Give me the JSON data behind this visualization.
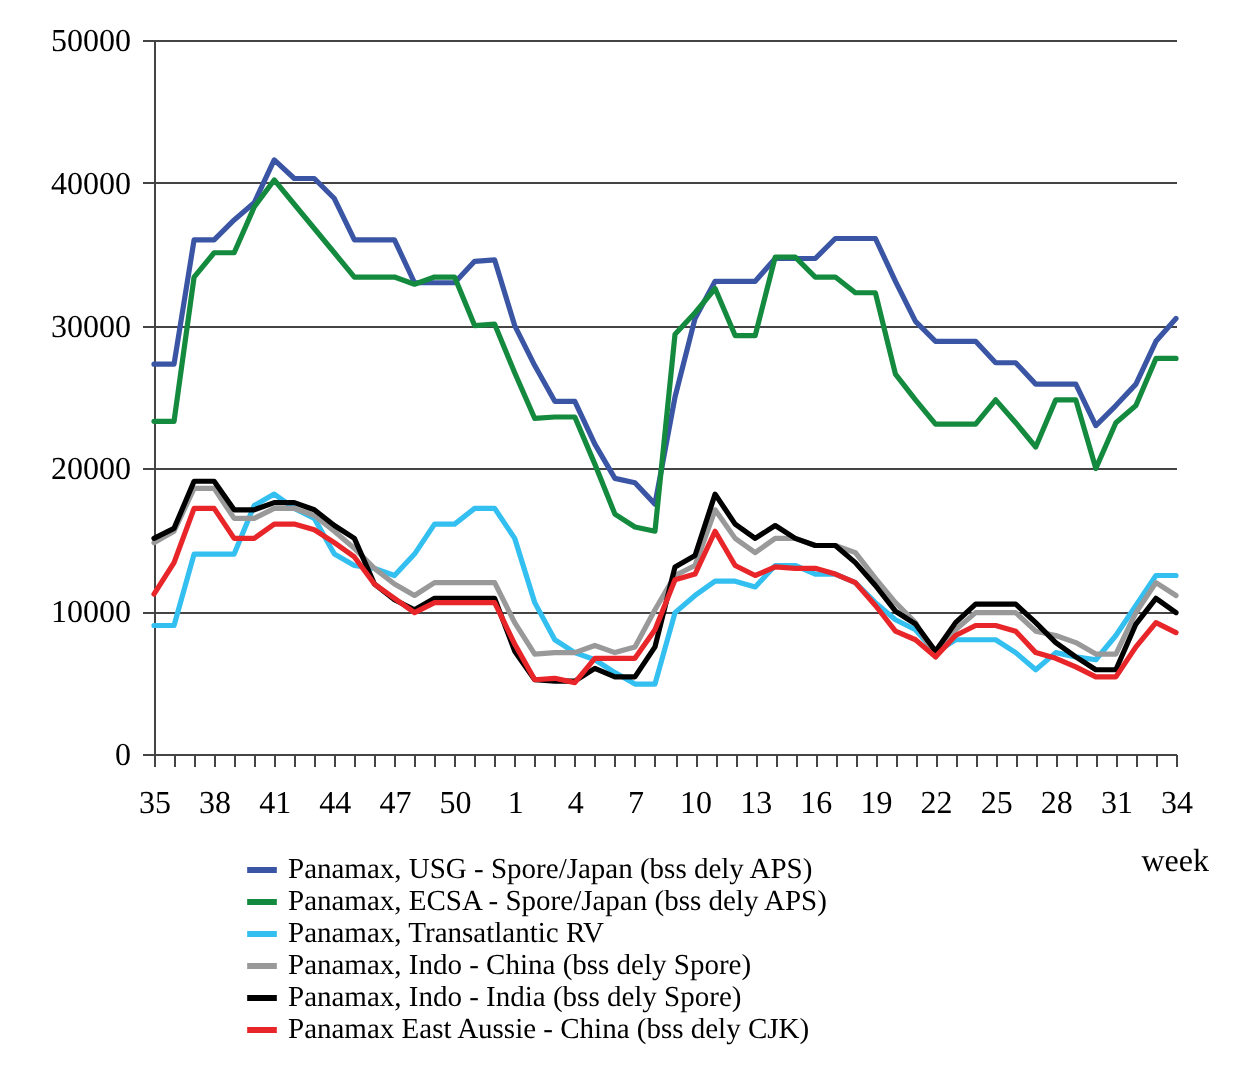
{
  "chart_data": {
    "type": "line",
    "xlabel": "week",
    "categories": [
      "35",
      null,
      null,
      "38",
      null,
      null,
      "41",
      null,
      null,
      "44",
      null,
      null,
      "47",
      null,
      null,
      "50",
      null,
      null,
      "1",
      null,
      null,
      "4",
      null,
      null,
      "7",
      null,
      null,
      "10",
      null,
      null,
      "13",
      null,
      null,
      "16",
      null,
      null,
      "19",
      null,
      null,
      "22",
      null,
      null,
      "25",
      null,
      null,
      "28",
      null,
      null,
      "31",
      null,
      null,
      "34"
    ],
    "series": [
      {
        "name": "Panamax, USG - Spore/Japan (bss dely APS)",
        "color": "#3b55a5",
        "values": [
          27300,
          27300,
          36000,
          36000,
          37400,
          38600,
          41600,
          40300,
          40300,
          38900,
          36000,
          36000,
          36000,
          33000,
          33000,
          33000,
          34500,
          34600,
          30000,
          27200,
          24700,
          24700,
          21700,
          19300,
          19000,
          17500,
          25000,
          30500,
          33100,
          33100,
          33100,
          34700,
          34700,
          34700,
          36100,
          36100,
          36100,
          33100,
          30300,
          28900,
          28900,
          28900,
          27400,
          27400,
          25900,
          25900,
          25900,
          23000,
          24400,
          25900,
          28900,
          30500
        ]
      },
      {
        "name": "Panamax, ECSA - Spore/Japan (bss dely APS)",
        "color": "#138a3e",
        "values": [
          23300,
          23300,
          33400,
          35100,
          35100,
          38300,
          40200,
          38500,
          36800,
          35100,
          33400,
          33400,
          33400,
          32900,
          33400,
          33400,
          30000,
          30100,
          26700,
          23500,
          23600,
          23600,
          20300,
          16800,
          15900,
          15600,
          29400,
          30900,
          32600,
          29300,
          29300,
          34800,
          34800,
          33400,
          33400,
          32300,
          32300,
          26600,
          24800,
          23100,
          23100,
          23100,
          24800,
          23200,
          21500,
          24800,
          24800,
          20000,
          23200,
          24400,
          27700,
          27700
        ]
      },
      {
        "name": "Panamax, Transatlantic  RV",
        "color": "#33bff0",
        "values": [
          9000,
          9000,
          14000,
          14000,
          14000,
          17400,
          18200,
          17200,
          16500,
          14000,
          13200,
          13000,
          12500,
          14000,
          16100,
          16100,
          17200,
          17200,
          15100,
          10600,
          8000,
          7100,
          6600,
          5700,
          4900,
          4900,
          9900,
          11100,
          12100,
          12100,
          11700,
          13200,
          13200,
          12600,
          12600,
          12000,
          10600,
          9400,
          8700,
          7100,
          8000,
          8000,
          8000,
          7100,
          5900,
          7100,
          6800,
          6600,
          8300,
          10400,
          12500,
          12500
        ]
      },
      {
        "name": "Panamax, Indo - China (bss dely Spore)",
        "color": "#999999",
        "values": [
          14800,
          15600,
          18600,
          18600,
          16500,
          16500,
          17200,
          17200,
          16700,
          15600,
          14400,
          13000,
          11900,
          11100,
          12000,
          12000,
          12000,
          12000,
          9200,
          7000,
          7100,
          7100,
          7600,
          7100,
          7500,
          10100,
          12500,
          13200,
          17100,
          15100,
          14100,
          15100,
          15100,
          14600,
          14600,
          14100,
          12300,
          10600,
          9200,
          6800,
          8700,
          9900,
          9900,
          9900,
          8600,
          8300,
          7800,
          7000,
          7000,
          9900,
          12000,
          11100
        ]
      },
      {
        "name": "Panamax, Indo - India (bss dely Spore)",
        "color": "#000000",
        "values": [
          15100,
          15800,
          19100,
          19100,
          17100,
          17100,
          17600,
          17600,
          17100,
          16000,
          15100,
          11900,
          10800,
          10100,
          10900,
          10900,
          10900,
          10900,
          7200,
          5200,
          5100,
          5100,
          6000,
          5400,
          5400,
          7500,
          13100,
          13900,
          18200,
          16100,
          15100,
          16000,
          15100,
          14600,
          14600,
          13400,
          11800,
          10000,
          9100,
          7200,
          9200,
          10500,
          10500,
          10500,
          9200,
          7800,
          6800,
          5900,
          5900,
          9100,
          10900,
          9900
        ]
      },
      {
        "name": "Panamax East Aussie - China (bss dely CJK)",
        "color": "#e8262a",
        "values": [
          11200,
          13400,
          17200,
          17200,
          15100,
          15100,
          16100,
          16100,
          15700,
          14800,
          13800,
          11900,
          10900,
          9900,
          10600,
          10600,
          10600,
          10600,
          7700,
          5200,
          5300,
          5000,
          6700,
          6700,
          6700,
          8700,
          12200,
          12600,
          15600,
          13200,
          12500,
          13100,
          13000,
          13000,
          12600,
          12000,
          10400,
          8600,
          8000,
          6800,
          8300,
          9000,
          9000,
          8600,
          7100,
          6700,
          6100,
          5400,
          5400,
          7500,
          9200,
          8500
        ]
      }
    ],
    "ylim": [
      0,
      50000
    ],
    "yticks": [
      0,
      10000,
      20000,
      30000,
      40000,
      50000
    ],
    "grid": "y",
    "legend": "bottom"
  }
}
